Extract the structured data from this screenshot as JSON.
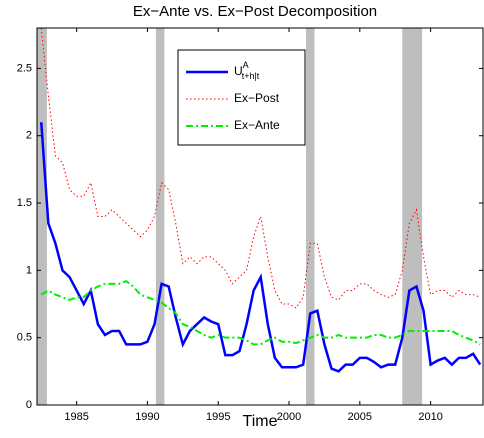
{
  "chart_data": {
    "type": "line",
    "title": "Ex−Ante vs. Ex−Post Decomposition",
    "xlabel": "Time",
    "x": [
      1982.5,
      1983,
      1983.5,
      1984,
      1984.5,
      1985,
      1985.5,
      1986,
      1986.5,
      1987,
      1987.5,
      1988,
      1988.5,
      1989,
      1989.5,
      1990,
      1990.5,
      1991,
      1991.5,
      1992,
      1992.5,
      1993,
      1993.5,
      1994,
      1994.5,
      1995,
      1995.5,
      1996,
      1996.5,
      1997,
      1997.5,
      1998,
      1998.5,
      1999,
      1999.5,
      2000,
      2000.5,
      2001,
      2001.5,
      2002,
      2002.5,
      2003,
      2003.5,
      2004,
      2004.5,
      2005,
      2005.5,
      2006,
      2006.5,
      2007,
      2007.5,
      2008,
      2008.5,
      2009,
      2009.5,
      2010,
      2010.5,
      2011,
      2011.5,
      2012,
      2012.5,
      2013,
      2013.5
    ],
    "series": [
      {
        "name": "U",
        "name_sup": "A",
        "name_sub": "t+h|t",
        "color": "#0000ff",
        "style": "solid",
        "values": [
          2.1,
          1.35,
          1.2,
          1.0,
          0.95,
          0.85,
          0.75,
          0.85,
          0.6,
          0.52,
          0.55,
          0.55,
          0.45,
          0.45,
          0.45,
          0.47,
          0.6,
          0.9,
          0.88,
          0.65,
          0.45,
          0.55,
          0.6,
          0.65,
          0.62,
          0.6,
          0.37,
          0.37,
          0.4,
          0.6,
          0.85,
          0.95,
          0.6,
          0.35,
          0.28,
          0.28,
          0.28,
          0.3,
          0.68,
          0.7,
          0.45,
          0.27,
          0.25,
          0.3,
          0.3,
          0.35,
          0.35,
          0.32,
          0.28,
          0.3,
          0.3,
          0.5,
          0.85,
          0.88,
          0.7,
          0.3,
          0.33,
          0.35,
          0.3,
          0.35,
          0.35,
          0.38,
          0.3
        ]
      },
      {
        "name": "Ex−Post",
        "color": "#ff0000",
        "style": "dotted",
        "values": [
          2.8,
          2.3,
          1.85,
          1.8,
          1.6,
          1.55,
          1.55,
          1.65,
          1.4,
          1.4,
          1.45,
          1.4,
          1.35,
          1.3,
          1.25,
          1.3,
          1.4,
          1.65,
          1.6,
          1.35,
          1.05,
          1.1,
          1.05,
          1.1,
          1.1,
          1.05,
          1.0,
          0.9,
          0.95,
          1.0,
          1.25,
          1.4,
          1.1,
          0.85,
          0.75,
          0.75,
          0.72,
          0.8,
          1.2,
          1.2,
          0.95,
          0.8,
          0.78,
          0.85,
          0.85,
          0.9,
          0.9,
          0.85,
          0.82,
          0.8,
          0.82,
          1.0,
          1.35,
          1.45,
          1.1,
          0.82,
          0.85,
          0.85,
          0.8,
          0.85,
          0.82,
          0.82,
          0.8
        ]
      },
      {
        "name": "Ex−Ante",
        "color": "#00ee00",
        "style": "dashdot",
        "values": [
          0.82,
          0.85,
          0.82,
          0.8,
          0.78,
          0.8,
          0.8,
          0.85,
          0.88,
          0.9,
          0.9,
          0.9,
          0.92,
          0.88,
          0.82,
          0.8,
          0.78,
          0.76,
          0.72,
          0.68,
          0.6,
          0.58,
          0.55,
          0.52,
          0.5,
          0.52,
          0.5,
          0.5,
          0.5,
          0.48,
          0.45,
          0.45,
          0.48,
          0.5,
          0.47,
          0.47,
          0.46,
          0.48,
          0.5,
          0.52,
          0.5,
          0.5,
          0.52,
          0.5,
          0.5,
          0.5,
          0.5,
          0.52,
          0.52,
          0.5,
          0.5,
          0.52,
          0.55,
          0.55,
          0.55,
          0.55,
          0.55,
          0.55,
          0.55,
          0.52,
          0.5,
          0.48,
          0.45
        ]
      }
    ],
    "shaded": [
      [
        1982.2,
        1982.9
      ],
      [
        1990.6,
        1991.2
      ],
      [
        2001.2,
        2001.8
      ],
      [
        2008.0,
        2009.4
      ]
    ],
    "shade_color": "#bebebe",
    "xlim": [
      1982.2,
      2013.7
    ],
    "ylim": [
      0,
      2.8
    ],
    "xticks": [
      1985,
      1990,
      1995,
      2000,
      2005,
      2010
    ],
    "yticks": [
      0,
      0.5,
      1,
      1.5,
      2,
      2.5
    ],
    "grid": false,
    "legend": "north"
  }
}
